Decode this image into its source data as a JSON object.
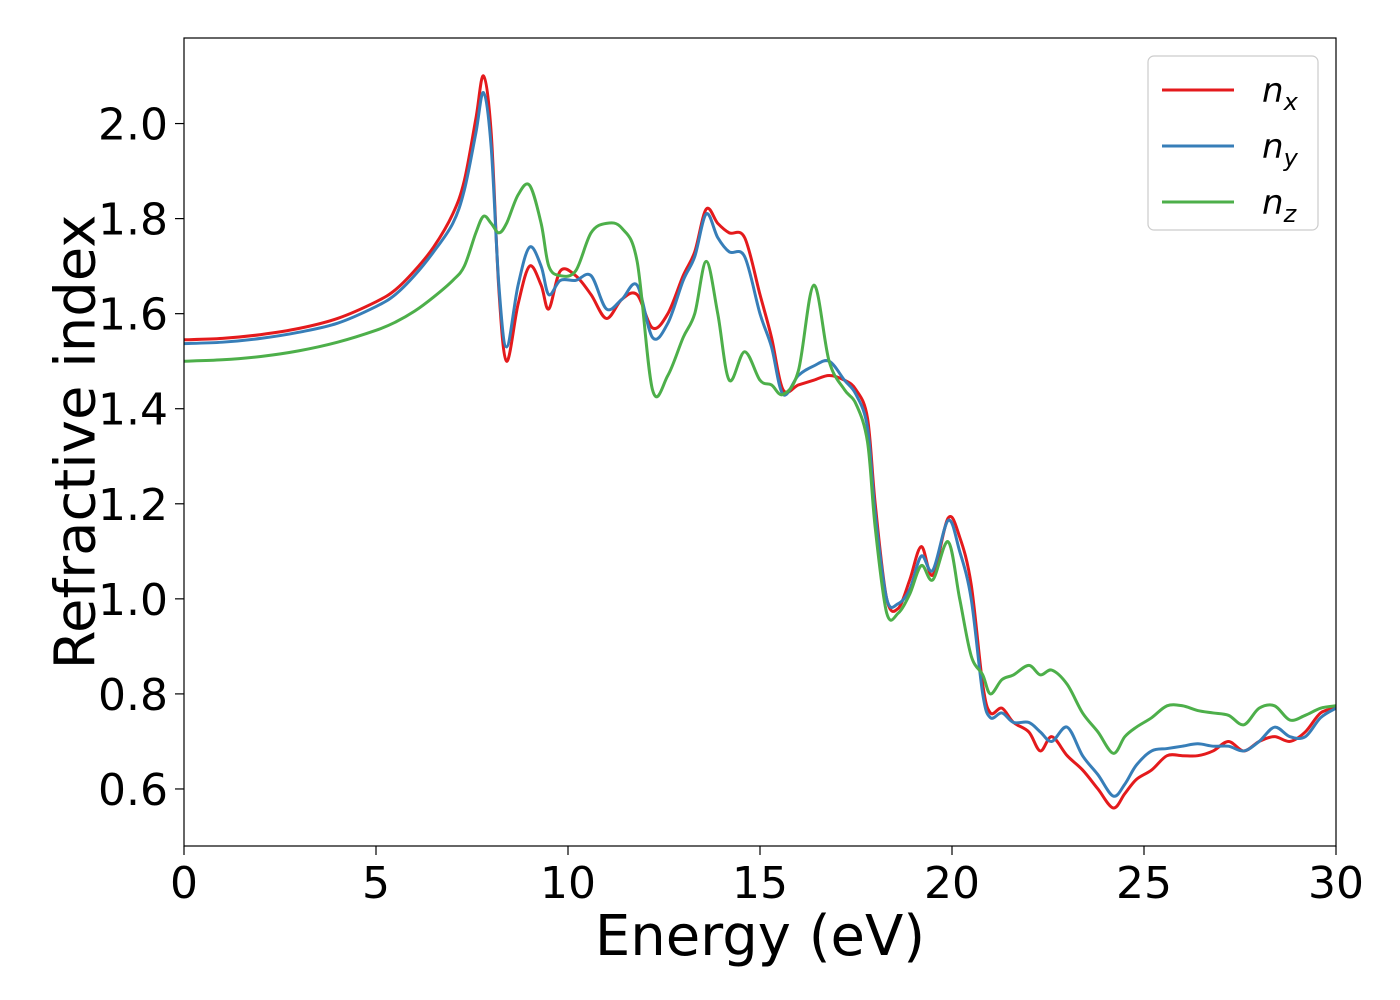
{
  "chart_data": {
    "type": "line",
    "title": "",
    "xlabel": "Energy (eV)",
    "ylabel": "Refractive index",
    "xlim": [
      0,
      30
    ],
    "ylim": [
      0.48,
      2.18
    ],
    "xticks": [
      0,
      5,
      10,
      15,
      20,
      25,
      30
    ],
    "yticks": [
      0.6,
      0.8,
      1.0,
      1.2,
      1.4,
      1.6,
      1.8,
      2.0
    ],
    "grid": false,
    "legend_position": "top-right",
    "series": [
      {
        "name": "n",
        "subscript": "x",
        "color": "#e41a1c",
        "x": [
          0,
          1,
          2,
          3,
          4,
          5,
          5.5,
          6,
          6.5,
          7,
          7.3,
          7.6,
          7.8,
          8.0,
          8.2,
          8.4,
          8.7,
          9.0,
          9.3,
          9.5,
          9.8,
          10.2,
          10.6,
          11.0,
          11.4,
          11.8,
          12.2,
          12.6,
          13.0,
          13.3,
          13.6,
          13.9,
          14.2,
          14.6,
          15.0,
          15.3,
          15.6,
          16.0,
          16.4,
          16.8,
          17.2,
          17.5,
          17.8,
          18.0,
          18.3,
          18.6,
          18.9,
          19.2,
          19.5,
          19.9,
          20.2,
          20.5,
          20.8,
          21.0,
          21.3,
          21.6,
          22.0,
          22.3,
          22.6,
          23.0,
          23.4,
          23.8,
          24.2,
          24.5,
          24.8,
          25.2,
          25.6,
          26.0,
          26.4,
          26.8,
          27.2,
          27.6,
          28.0,
          28.4,
          28.8,
          29.2,
          29.6,
          30
        ],
        "y": [
          1.545,
          1.548,
          1.556,
          1.569,
          1.59,
          1.625,
          1.65,
          1.69,
          1.74,
          1.81,
          1.88,
          2.01,
          2.1,
          1.98,
          1.65,
          1.5,
          1.62,
          1.7,
          1.66,
          1.61,
          1.69,
          1.68,
          1.64,
          1.59,
          1.63,
          1.64,
          1.57,
          1.6,
          1.68,
          1.73,
          1.82,
          1.79,
          1.77,
          1.76,
          1.64,
          1.55,
          1.44,
          1.45,
          1.46,
          1.47,
          1.46,
          1.44,
          1.38,
          1.2,
          1.0,
          0.98,
          1.04,
          1.11,
          1.05,
          1.17,
          1.13,
          1.03,
          0.82,
          0.76,
          0.77,
          0.74,
          0.72,
          0.68,
          0.71,
          0.67,
          0.64,
          0.6,
          0.56,
          0.59,
          0.62,
          0.64,
          0.67,
          0.67,
          0.67,
          0.68,
          0.7,
          0.68,
          0.7,
          0.71,
          0.7,
          0.72,
          0.76,
          0.77
        ]
      },
      {
        "name": "n",
        "subscript": "y",
        "color": "#377eb8",
        "x": [
          0,
          1,
          2,
          3,
          4,
          5,
          5.5,
          6,
          6.5,
          7,
          7.3,
          7.6,
          7.8,
          8.0,
          8.2,
          8.4,
          8.7,
          9.0,
          9.3,
          9.5,
          9.8,
          10.2,
          10.6,
          11.0,
          11.4,
          11.8,
          12.2,
          12.6,
          13.0,
          13.3,
          13.6,
          13.9,
          14.2,
          14.6,
          15.0,
          15.3,
          15.6,
          16.0,
          16.4,
          16.8,
          17.2,
          17.5,
          17.8,
          18.0,
          18.3,
          18.6,
          18.9,
          19.2,
          19.5,
          19.9,
          20.2,
          20.5,
          20.8,
          21.0,
          21.3,
          21.6,
          22.0,
          22.3,
          22.6,
          23.0,
          23.4,
          23.8,
          24.2,
          24.5,
          24.8,
          25.2,
          25.6,
          26.0,
          26.4,
          26.8,
          27.2,
          27.6,
          28.0,
          28.4,
          28.8,
          29.2,
          29.6,
          30
        ],
        "y": [
          1.537,
          1.54,
          1.548,
          1.561,
          1.58,
          1.615,
          1.64,
          1.68,
          1.73,
          1.79,
          1.86,
          1.98,
          2.065,
          1.95,
          1.66,
          1.53,
          1.66,
          1.74,
          1.7,
          1.64,
          1.67,
          1.67,
          1.68,
          1.61,
          1.63,
          1.66,
          1.55,
          1.58,
          1.67,
          1.72,
          1.81,
          1.76,
          1.73,
          1.72,
          1.6,
          1.53,
          1.43,
          1.47,
          1.49,
          1.5,
          1.46,
          1.43,
          1.36,
          1.18,
          1.0,
          0.99,
          1.02,
          1.09,
          1.06,
          1.165,
          1.1,
          1.0,
          0.8,
          0.75,
          0.76,
          0.74,
          0.74,
          0.72,
          0.7,
          0.73,
          0.67,
          0.63,
          0.585,
          0.61,
          0.65,
          0.68,
          0.685,
          0.69,
          0.695,
          0.69,
          0.69,
          0.68,
          0.7,
          0.73,
          0.71,
          0.71,
          0.75,
          0.77
        ]
      },
      {
        "name": "n",
        "subscript": "z",
        "color": "#4daf4a",
        "x": [
          0,
          1,
          2,
          3,
          4,
          5,
          5.5,
          6,
          6.5,
          7,
          7.3,
          7.6,
          7.8,
          8.0,
          8.2,
          8.4,
          8.7,
          9.0,
          9.3,
          9.5,
          9.8,
          10.2,
          10.6,
          11.0,
          11.4,
          11.8,
          12.2,
          12.6,
          13.0,
          13.3,
          13.6,
          13.9,
          14.2,
          14.6,
          15.0,
          15.3,
          15.6,
          16.0,
          16.4,
          16.8,
          17.2,
          17.5,
          17.8,
          18.0,
          18.3,
          18.6,
          18.9,
          19.2,
          19.5,
          19.9,
          20.2,
          20.5,
          20.8,
          21.0,
          21.3,
          21.6,
          22.0,
          22.3,
          22.6,
          23.0,
          23.4,
          23.8,
          24.2,
          24.5,
          24.8,
          25.2,
          25.6,
          26.0,
          26.4,
          26.8,
          27.2,
          27.6,
          28.0,
          28.4,
          28.8,
          29.2,
          29.6,
          30
        ],
        "y": [
          1.5,
          1.503,
          1.51,
          1.522,
          1.54,
          1.565,
          1.582,
          1.605,
          1.635,
          1.67,
          1.7,
          1.77,
          1.805,
          1.79,
          1.77,
          1.79,
          1.85,
          1.87,
          1.79,
          1.7,
          1.68,
          1.69,
          1.77,
          1.79,
          1.78,
          1.71,
          1.44,
          1.47,
          1.55,
          1.6,
          1.71,
          1.6,
          1.46,
          1.52,
          1.46,
          1.45,
          1.43,
          1.48,
          1.66,
          1.5,
          1.44,
          1.41,
          1.33,
          1.15,
          0.97,
          0.97,
          1.01,
          1.07,
          1.04,
          1.12,
          1.0,
          0.88,
          0.84,
          0.8,
          0.83,
          0.84,
          0.86,
          0.84,
          0.85,
          0.82,
          0.76,
          0.72,
          0.675,
          0.71,
          0.73,
          0.75,
          0.775,
          0.775,
          0.765,
          0.76,
          0.755,
          0.735,
          0.77,
          0.775,
          0.745,
          0.755,
          0.77,
          0.775
        ]
      }
    ]
  }
}
